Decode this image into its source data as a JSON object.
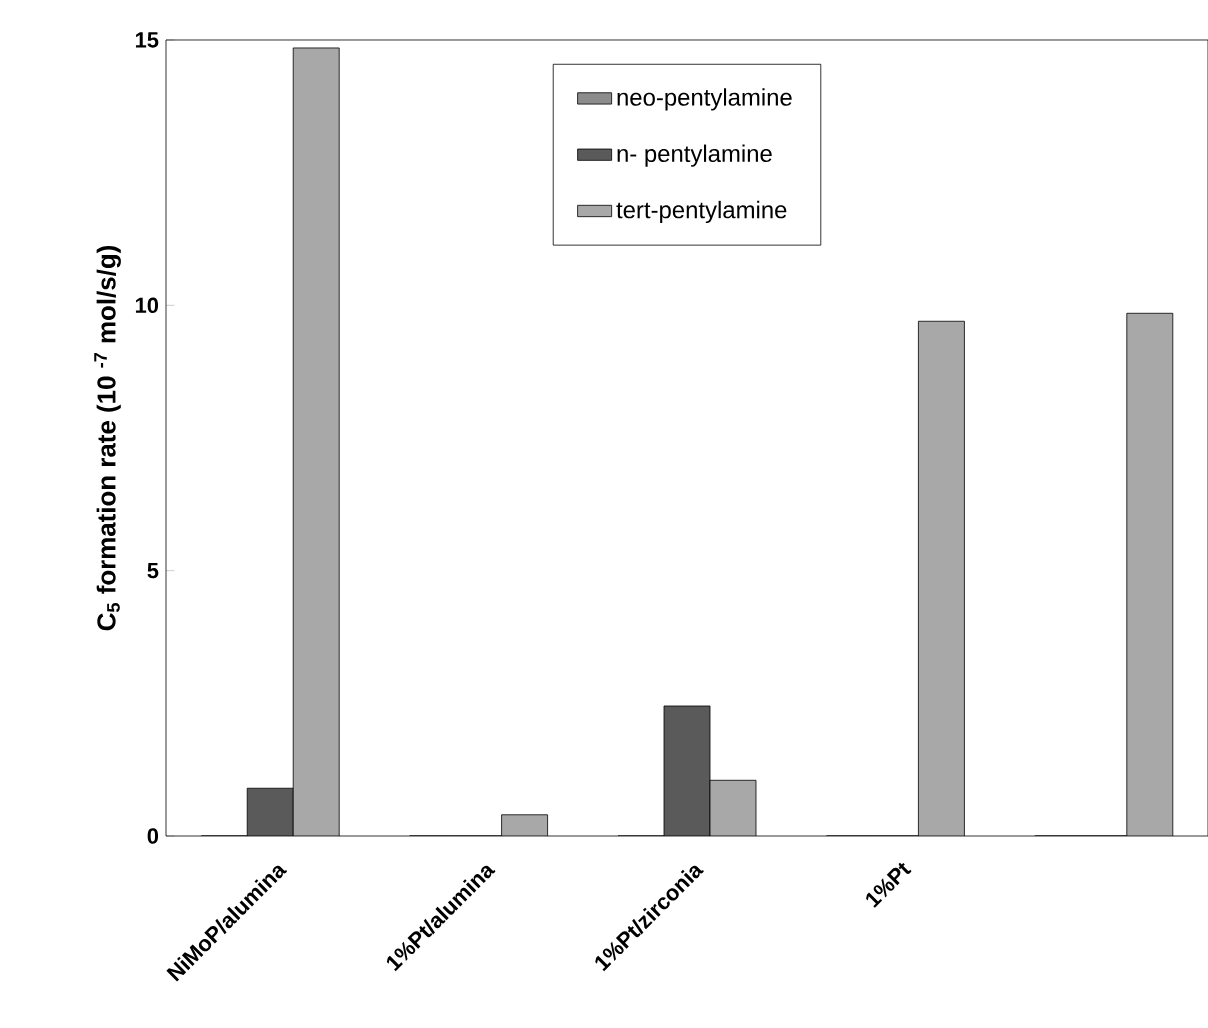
{
  "chart_data": {
    "type": "bar",
    "ylabel": "C$_{5}$ formation rate (10 $^{-7}$ mol/s/g)",
    "categories": [
      "NiMoP/alumina",
      "1%Pt/alumina",
      "1%Pt/zirconia",
      "1%Pt",
      null
    ],
    "series": [
      {
        "name": "neo-pentylamine",
        "color": "#8c8c8c",
        "values": [
          0,
          0,
          0,
          0,
          0
        ]
      },
      {
        "name": "n- pentylamine",
        "color": "#5a5a5a",
        "values": [
          0.9,
          0,
          2.45,
          0,
          0
        ]
      },
      {
        "name": "tert-pentylamine",
        "color": "#a8a8a8",
        "values": [
          14.85,
          0.4,
          1.05,
          9.7,
          9.85
        ]
      }
    ],
    "ylim": [
      0,
      15
    ],
    "yticks": [
      0,
      5,
      10,
      15
    ],
    "legend": "top",
    "grid": false
  }
}
